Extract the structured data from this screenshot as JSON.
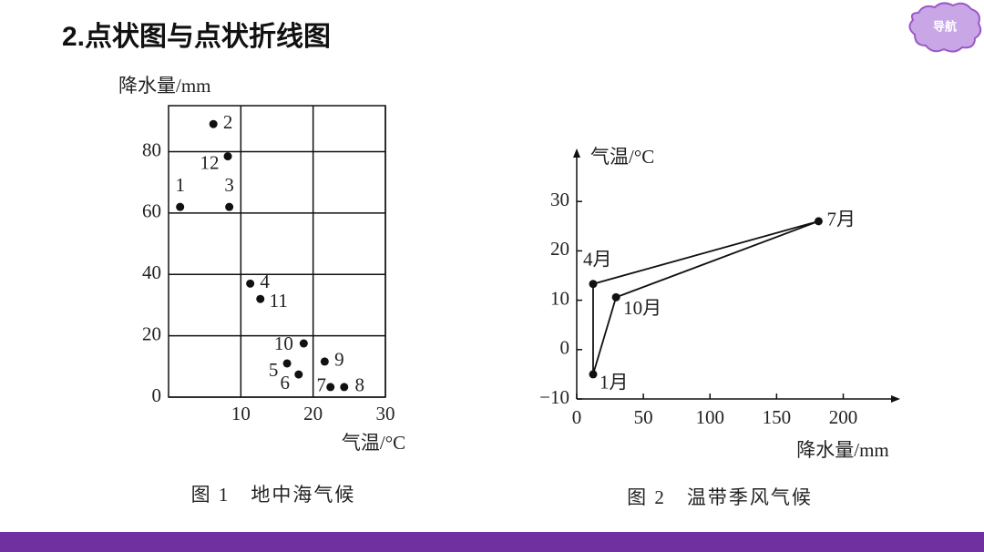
{
  "title": "2.点状图与点状折线图",
  "nav": "导航",
  "chart_data": [
    {
      "type": "scatter",
      "caption": "图 1　地中海气候",
      "x_label": "气温/°C",
      "y_label": "降水量/mm",
      "point_labels": [
        "1",
        "2",
        "3",
        "4",
        "5",
        "6",
        "7",
        "8",
        "9",
        "10",
        "11",
        "12"
      ],
      "x": [
        1.6,
        6.2,
        8.4,
        11.3,
        16.4,
        18.0,
        22.4,
        24.3,
        21.6,
        18.7,
        12.7,
        8.2
      ],
      "y": [
        62,
        89,
        62,
        37,
        11,
        7.4,
        3.3,
        3.3,
        11.6,
        17.5,
        32,
        78.5
      ],
      "xlim": [
        0,
        30
      ],
      "ylim": [
        0,
        95
      ],
      "xticks": [
        10,
        20,
        30
      ],
      "yticks": [
        0,
        20,
        40,
        60,
        80
      ],
      "grid": true,
      "color": "#111111"
    },
    {
      "type": "line",
      "caption": "图 2　温带季风气候",
      "x_label": "降水量/mm",
      "y_label": "气温/°C",
      "point_labels": [
        "1月",
        "4月",
        "7月",
        "10月"
      ],
      "x": [
        12.3,
        12.3,
        181.5,
        29.5
      ],
      "values": [
        -5,
        13.3,
        26,
        10.6
      ],
      "closed": true,
      "xlim": [
        0,
        240
      ],
      "ylim": [
        -10,
        40
      ],
      "xticks": [
        0,
        50,
        100,
        150,
        200
      ],
      "yticks": [
        {
          "value": -10,
          "label": "−10"
        },
        0,
        10,
        20,
        30
      ],
      "grid": false,
      "color": "#111111"
    }
  ]
}
